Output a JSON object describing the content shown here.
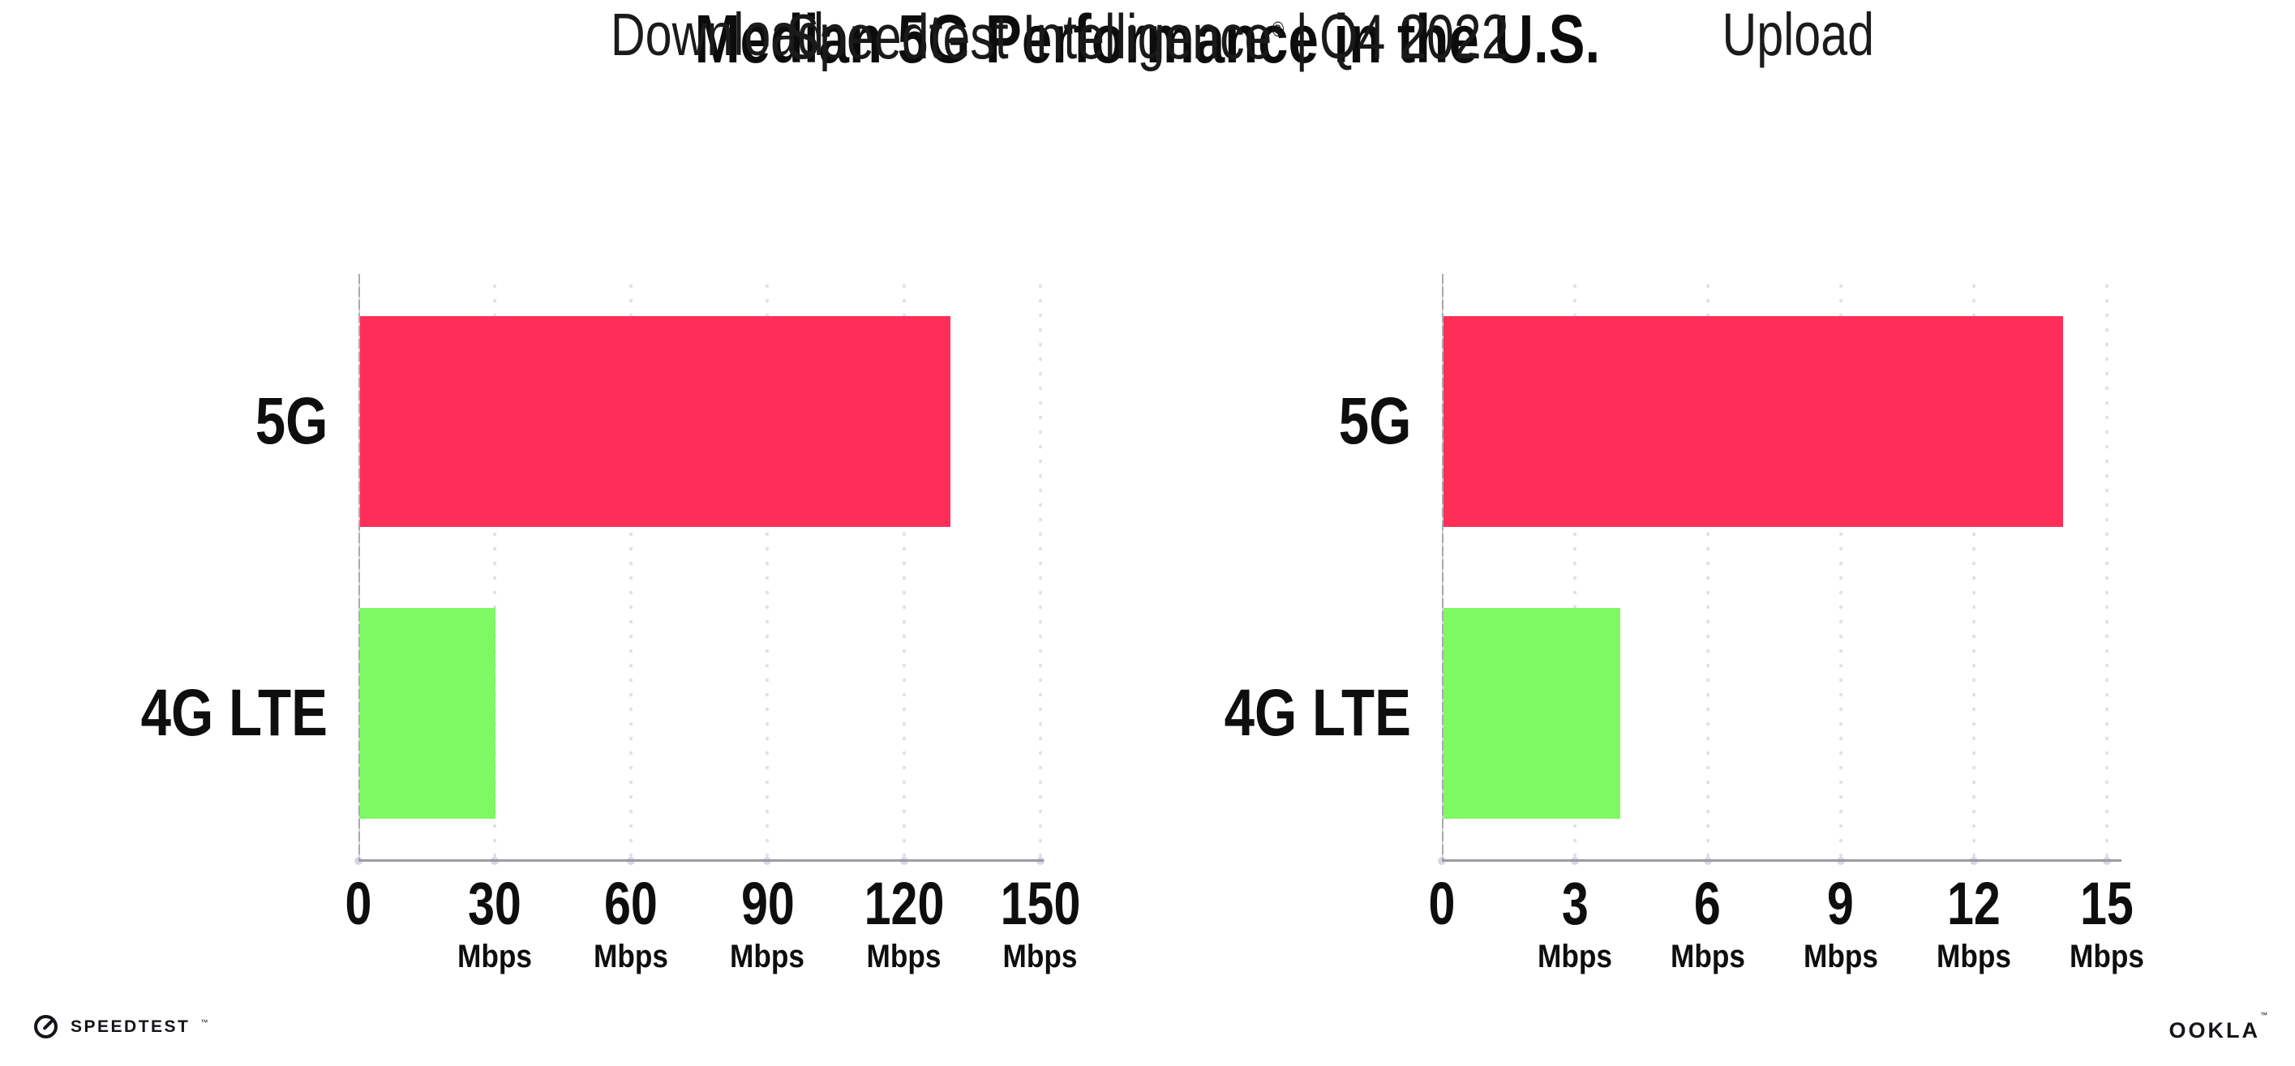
{
  "header": {
    "title": "Median 5G Performance in the U.S.",
    "subtitle_brand": "Speedtest Intelligence",
    "subtitle_reg": "®",
    "subtitle_separator": "|",
    "subtitle_period": "Q4 2022"
  },
  "chart_data": [
    {
      "type": "bar",
      "orientation": "horizontal",
      "title": "Download",
      "categories": [
        "5G",
        "4G LTE"
      ],
      "values": [
        130,
        30
      ],
      "unit": "Mbps",
      "xlim": [
        0,
        150
      ],
      "ticks": [
        0,
        30,
        60,
        90,
        120,
        150
      ],
      "grid": "dotted-vertical",
      "legend": "none",
      "bar_colors": [
        "#FE2E58",
        "#7EF964"
      ]
    },
    {
      "type": "bar",
      "orientation": "horizontal",
      "title": "Upload",
      "categories": [
        "5G",
        "4G LTE"
      ],
      "values": [
        14,
        4
      ],
      "unit": "Mbps",
      "xlim": [
        0,
        15
      ],
      "ticks": [
        0,
        3,
        6,
        9,
        12,
        15
      ],
      "grid": "dotted-vertical",
      "legend": "none",
      "bar_colors": [
        "#FE2E58",
        "#7EF964"
      ]
    }
  ],
  "colors": {
    "bar_5g": "#FE2E58",
    "bar_4g_lte": "#7EF964",
    "grid_dot": "#E0E1EC",
    "axis_line": "#9B9BA2",
    "tick_dot": "#D7D8E5",
    "text": "#111111",
    "logo": "#141419"
  },
  "footer": {
    "speedtest_label": "SPEEDTEST",
    "speedtest_tm": "™",
    "ookla_label": "OOKLA",
    "ookla_tm": "™"
  }
}
